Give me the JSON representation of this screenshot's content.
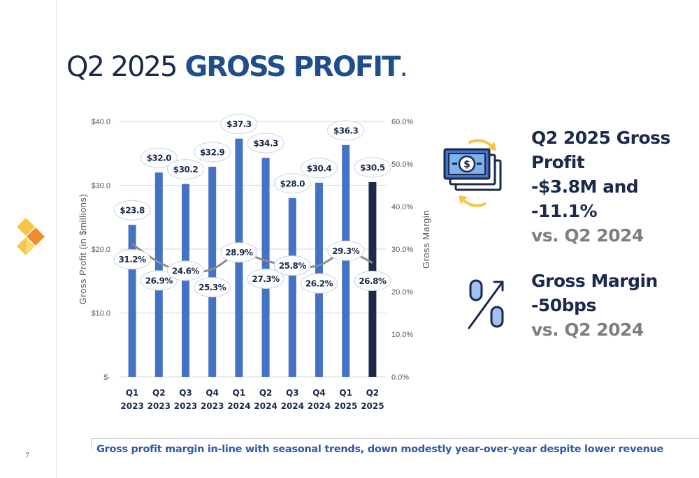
{
  "slide": {
    "title_light": "Q2 2025",
    "title_bold": "GROSS PROFIT",
    "title_dot": ".",
    "page_number": "7",
    "footer": "Gross profit margin in-line with seasonal trends, down modestly year-over-year despite lower revenue",
    "icons": [
      "company-logo-icon",
      "money-cycle-icon",
      "percent-trend-icon"
    ]
  },
  "kpis": [
    {
      "line1": "Q2 2025 Gross",
      "line2": "Profit",
      "line3": "-$3.8M and -11.1%",
      "sub": "vs. Q2 2024"
    },
    {
      "line1": "Gross Margin",
      "line2": "-50bps",
      "sub": "vs. Q2 2024"
    }
  ],
  "chart_data": {
    "type": "bar",
    "categories": [
      [
        "Q1",
        "2023"
      ],
      [
        "Q2",
        "2023"
      ],
      [
        "Q3",
        "2023"
      ],
      [
        "Q4",
        "2023"
      ],
      [
        "Q1",
        "2024"
      ],
      [
        "Q2",
        "2024"
      ],
      [
        "Q3",
        "2024"
      ],
      [
        "Q4",
        "2024"
      ],
      [
        "Q1",
        "2025"
      ],
      [
        "Q2",
        "2025"
      ]
    ],
    "series": [
      {
        "values": [
          23.8,
          32.0,
          30.2,
          32.9,
          37.3,
          34.3,
          28.0,
          30.4,
          36.3,
          30.5
        ],
        "labels": [
          "$23.8",
          "$32.0",
          "$30.2",
          "$32.9",
          "$37.3",
          "$34.3",
          "$28.0",
          "$30.4",
          "$36.3",
          "$30.5"
        ],
        "axis": "left",
        "chart": "bar"
      },
      {
        "values": [
          31.2,
          26.9,
          24.6,
          25.3,
          28.9,
          27.3,
          25.8,
          26.2,
          29.3,
          26.8
        ],
        "labels": [
          "31.2%",
          "26.9%",
          "24.6%",
          "25.3%",
          "28.9%",
          "27.3%",
          "25.8%",
          "26.2%",
          "29.3%",
          "26.8%"
        ],
        "axis": "right",
        "chart": "line"
      }
    ],
    "ylabel": "Gross Profit (in $millions)",
    "y2label": "Gross Margin",
    "ylim": [
      0,
      40
    ],
    "y2lim": [
      0,
      60
    ],
    "yticks": [
      "$-",
      "$10.0",
      "$20.0",
      "$30.0",
      "$40.0"
    ],
    "y2ticks": [
      "0.0%",
      "10.0%",
      "20.0%",
      "30.0%",
      "40.0%",
      "50.0%",
      "60.0%"
    ],
    "grid": true,
    "bar_color": "#4472c4",
    "highlight_color": "#1b2a4a",
    "line_color": "#8c8c8c"
  }
}
